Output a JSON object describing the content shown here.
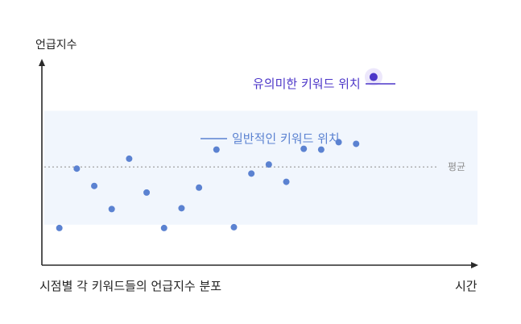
{
  "chart_data": {
    "type": "scatter",
    "title": "",
    "ylabel": "언급지수",
    "xlabel": "시간",
    "caption": "시점별 각 키워드들의 언급지수 분포",
    "average_label": "평균",
    "series": [
      {
        "name": "일반적인 키워드 위치",
        "points": [
          {
            "x": 1,
            "y": 45
          },
          {
            "x": 2,
            "y": 117
          },
          {
            "x": 3,
            "y": 96
          },
          {
            "x": 4,
            "y": 68
          },
          {
            "x": 5,
            "y": 129
          },
          {
            "x": 6,
            "y": 88
          },
          {
            "x": 7,
            "y": 45
          },
          {
            "x": 8,
            "y": 69
          },
          {
            "x": 9,
            "y": 94
          },
          {
            "x": 10,
            "y": 140
          },
          {
            "x": 11,
            "y": 46
          },
          {
            "x": 12,
            "y": 111
          },
          {
            "x": 13,
            "y": 122
          },
          {
            "x": 14,
            "y": 101
          },
          {
            "x": 15,
            "y": 141
          },
          {
            "x": 16,
            "y": 140
          },
          {
            "x": 17,
            "y": 149
          },
          {
            "x": 18,
            "y": 147
          }
        ],
        "color": "#5b82d1"
      },
      {
        "name": "유의미한 키워드 위치",
        "points": [
          {
            "x": 19,
            "y": 228
          }
        ],
        "color": "#4c36c8"
      }
    ],
    "average": 119,
    "band": [
      49,
      187
    ],
    "xlim": [
      0,
      25
    ],
    "ylim": [
      0,
      250
    ],
    "grid": false
  },
  "colors": {
    "band": "#f1f6fd",
    "axis": "#2a2a2a",
    "average": "#8d8d8d",
    "normal": "#5b82d1",
    "significant": "#4c36c8",
    "significant_halo": "#ece7fb"
  }
}
